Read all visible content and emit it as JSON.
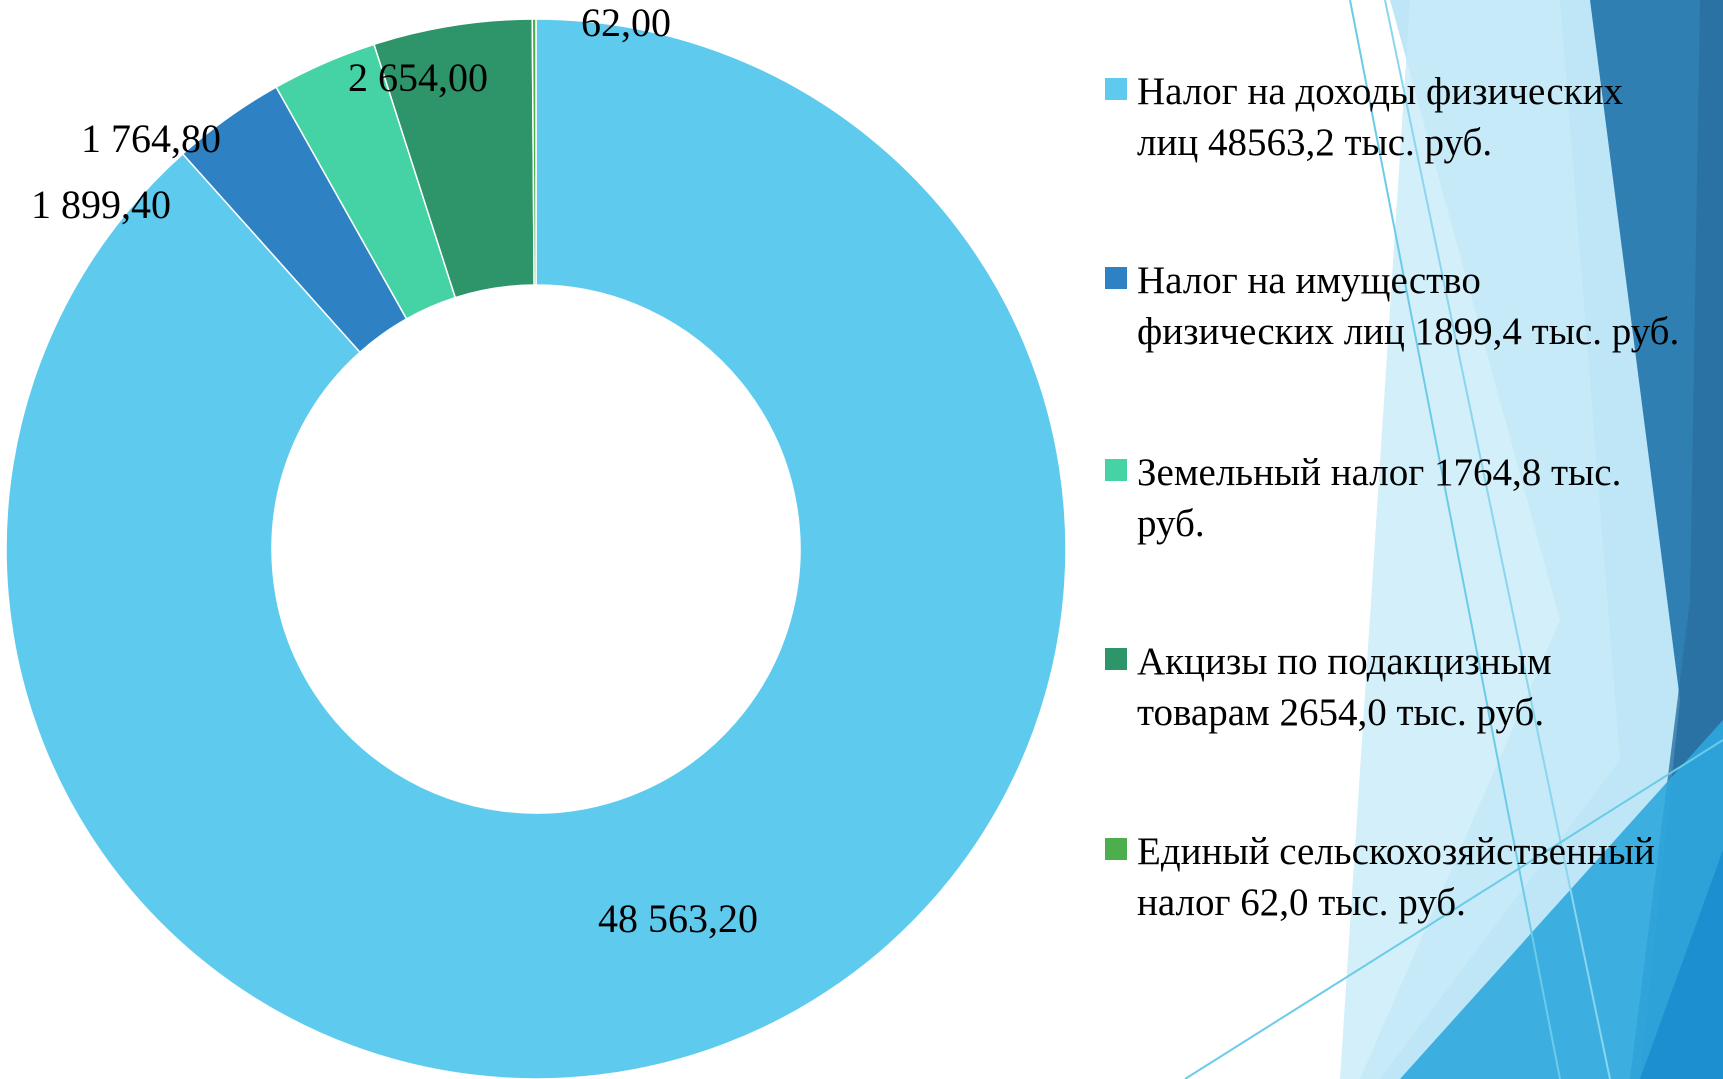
{
  "chart_data": {
    "type": "donut",
    "categories": [
      "Налог на доходы физических лиц 48563,2  тыс. руб.",
      "Налог на имущество физических лиц 1899,4 тыс. руб.",
      "Земельный налог 1764,8 тыс. руб.",
      "Акцизы по подакцизным товарам 2654,0 тыс. руб.",
      "Единый сельскохозяйственный налог 62,0 тыс. руб."
    ],
    "values": [
      48563.2,
      1899.4,
      1764.8,
      2654.0,
      62.0
    ],
    "value_labels": [
      "48 563,20",
      "1 899,40",
      "1 764,80",
      "2 654,00",
      "62,00"
    ],
    "colors": [
      "#5ecbee",
      "#2e82c4",
      "#45d2a4",
      "#2e9469",
      "#4cae4c"
    ],
    "legend": "right"
  }
}
